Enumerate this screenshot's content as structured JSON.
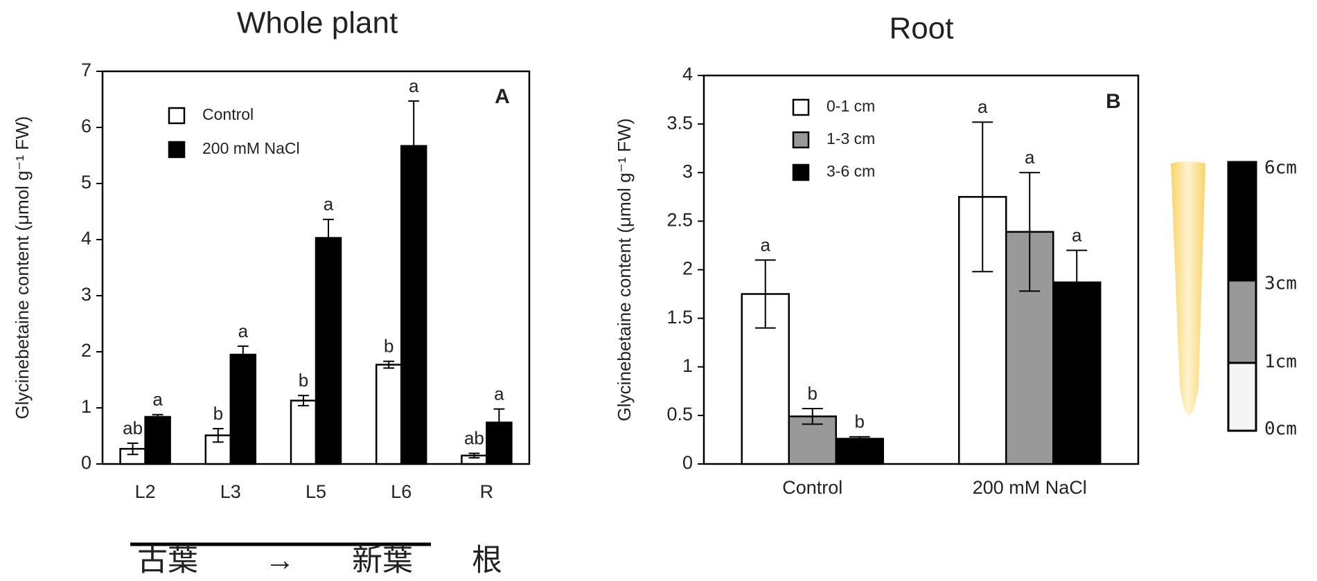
{
  "chart_data": [
    {
      "type": "bar",
      "title": "Whole plant",
      "panel_label": "A",
      "ylabel": "Glycinebetaine content (μmol g⁻¹ FW)",
      "categories": [
        "L2",
        "L3",
        "L5",
        "L6",
        "R"
      ],
      "series": [
        {
          "name": "Control",
          "color": "#ffffff",
          "values": [
            0.27,
            0.51,
            1.13,
            1.77,
            0.15
          ],
          "errors": [
            0.1,
            0.12,
            0.09,
            0.06,
            0.04
          ],
          "letters": [
            "ab",
            "b",
            "b",
            "b",
            "ab"
          ]
        },
        {
          "name": "200 mM NaCl",
          "color": "#000000",
          "values": [
            0.84,
            1.95,
            4.03,
            5.67,
            0.74
          ],
          "errors": [
            0.04,
            0.15,
            0.33,
            0.8,
            0.24
          ],
          "letters": [
            "a",
            "a",
            "a",
            "a",
            "a"
          ]
        }
      ],
      "ylim": [
        0,
        7
      ],
      "yticks": [
        0,
        1,
        2,
        3,
        4,
        5,
        6,
        7
      ],
      "legend": "upper left",
      "group_labels": [
        "古葉",
        "→",
        "新葉",
        "根"
      ]
    },
    {
      "type": "bar",
      "title": "Root",
      "panel_label": "B",
      "ylabel": "Glycinebetaine content (μmol g⁻¹ FW)",
      "categories": [
        "Control",
        "200 mM NaCl"
      ],
      "series": [
        {
          "name": "0-1 cm",
          "color": "#ffffff",
          "values": [
            1.75,
            2.75
          ],
          "errors": [
            0.35,
            0.77
          ],
          "letters": [
            "a",
            "a"
          ]
        },
        {
          "name": "1-3 cm",
          "color": "#999999",
          "values": [
            0.49,
            2.39
          ],
          "errors": [
            0.08,
            0.61
          ],
          "letters": [
            "b",
            "a"
          ]
        },
        {
          "name": "3-6 cm",
          "color": "#000000",
          "values": [
            0.26,
            1.87
          ],
          "errors": [
            0.02,
            0.33
          ],
          "letters": [
            "b",
            "a"
          ]
        }
      ],
      "ylim": [
        0,
        4
      ],
      "yticks": [
        0,
        0.5,
        1,
        1.5,
        2,
        2.5,
        3,
        3.5,
        4
      ],
      "legend": "upper left"
    }
  ],
  "root_diagram": {
    "labels": [
      "6cm",
      "3cm",
      "1cm",
      "0cm"
    ]
  }
}
